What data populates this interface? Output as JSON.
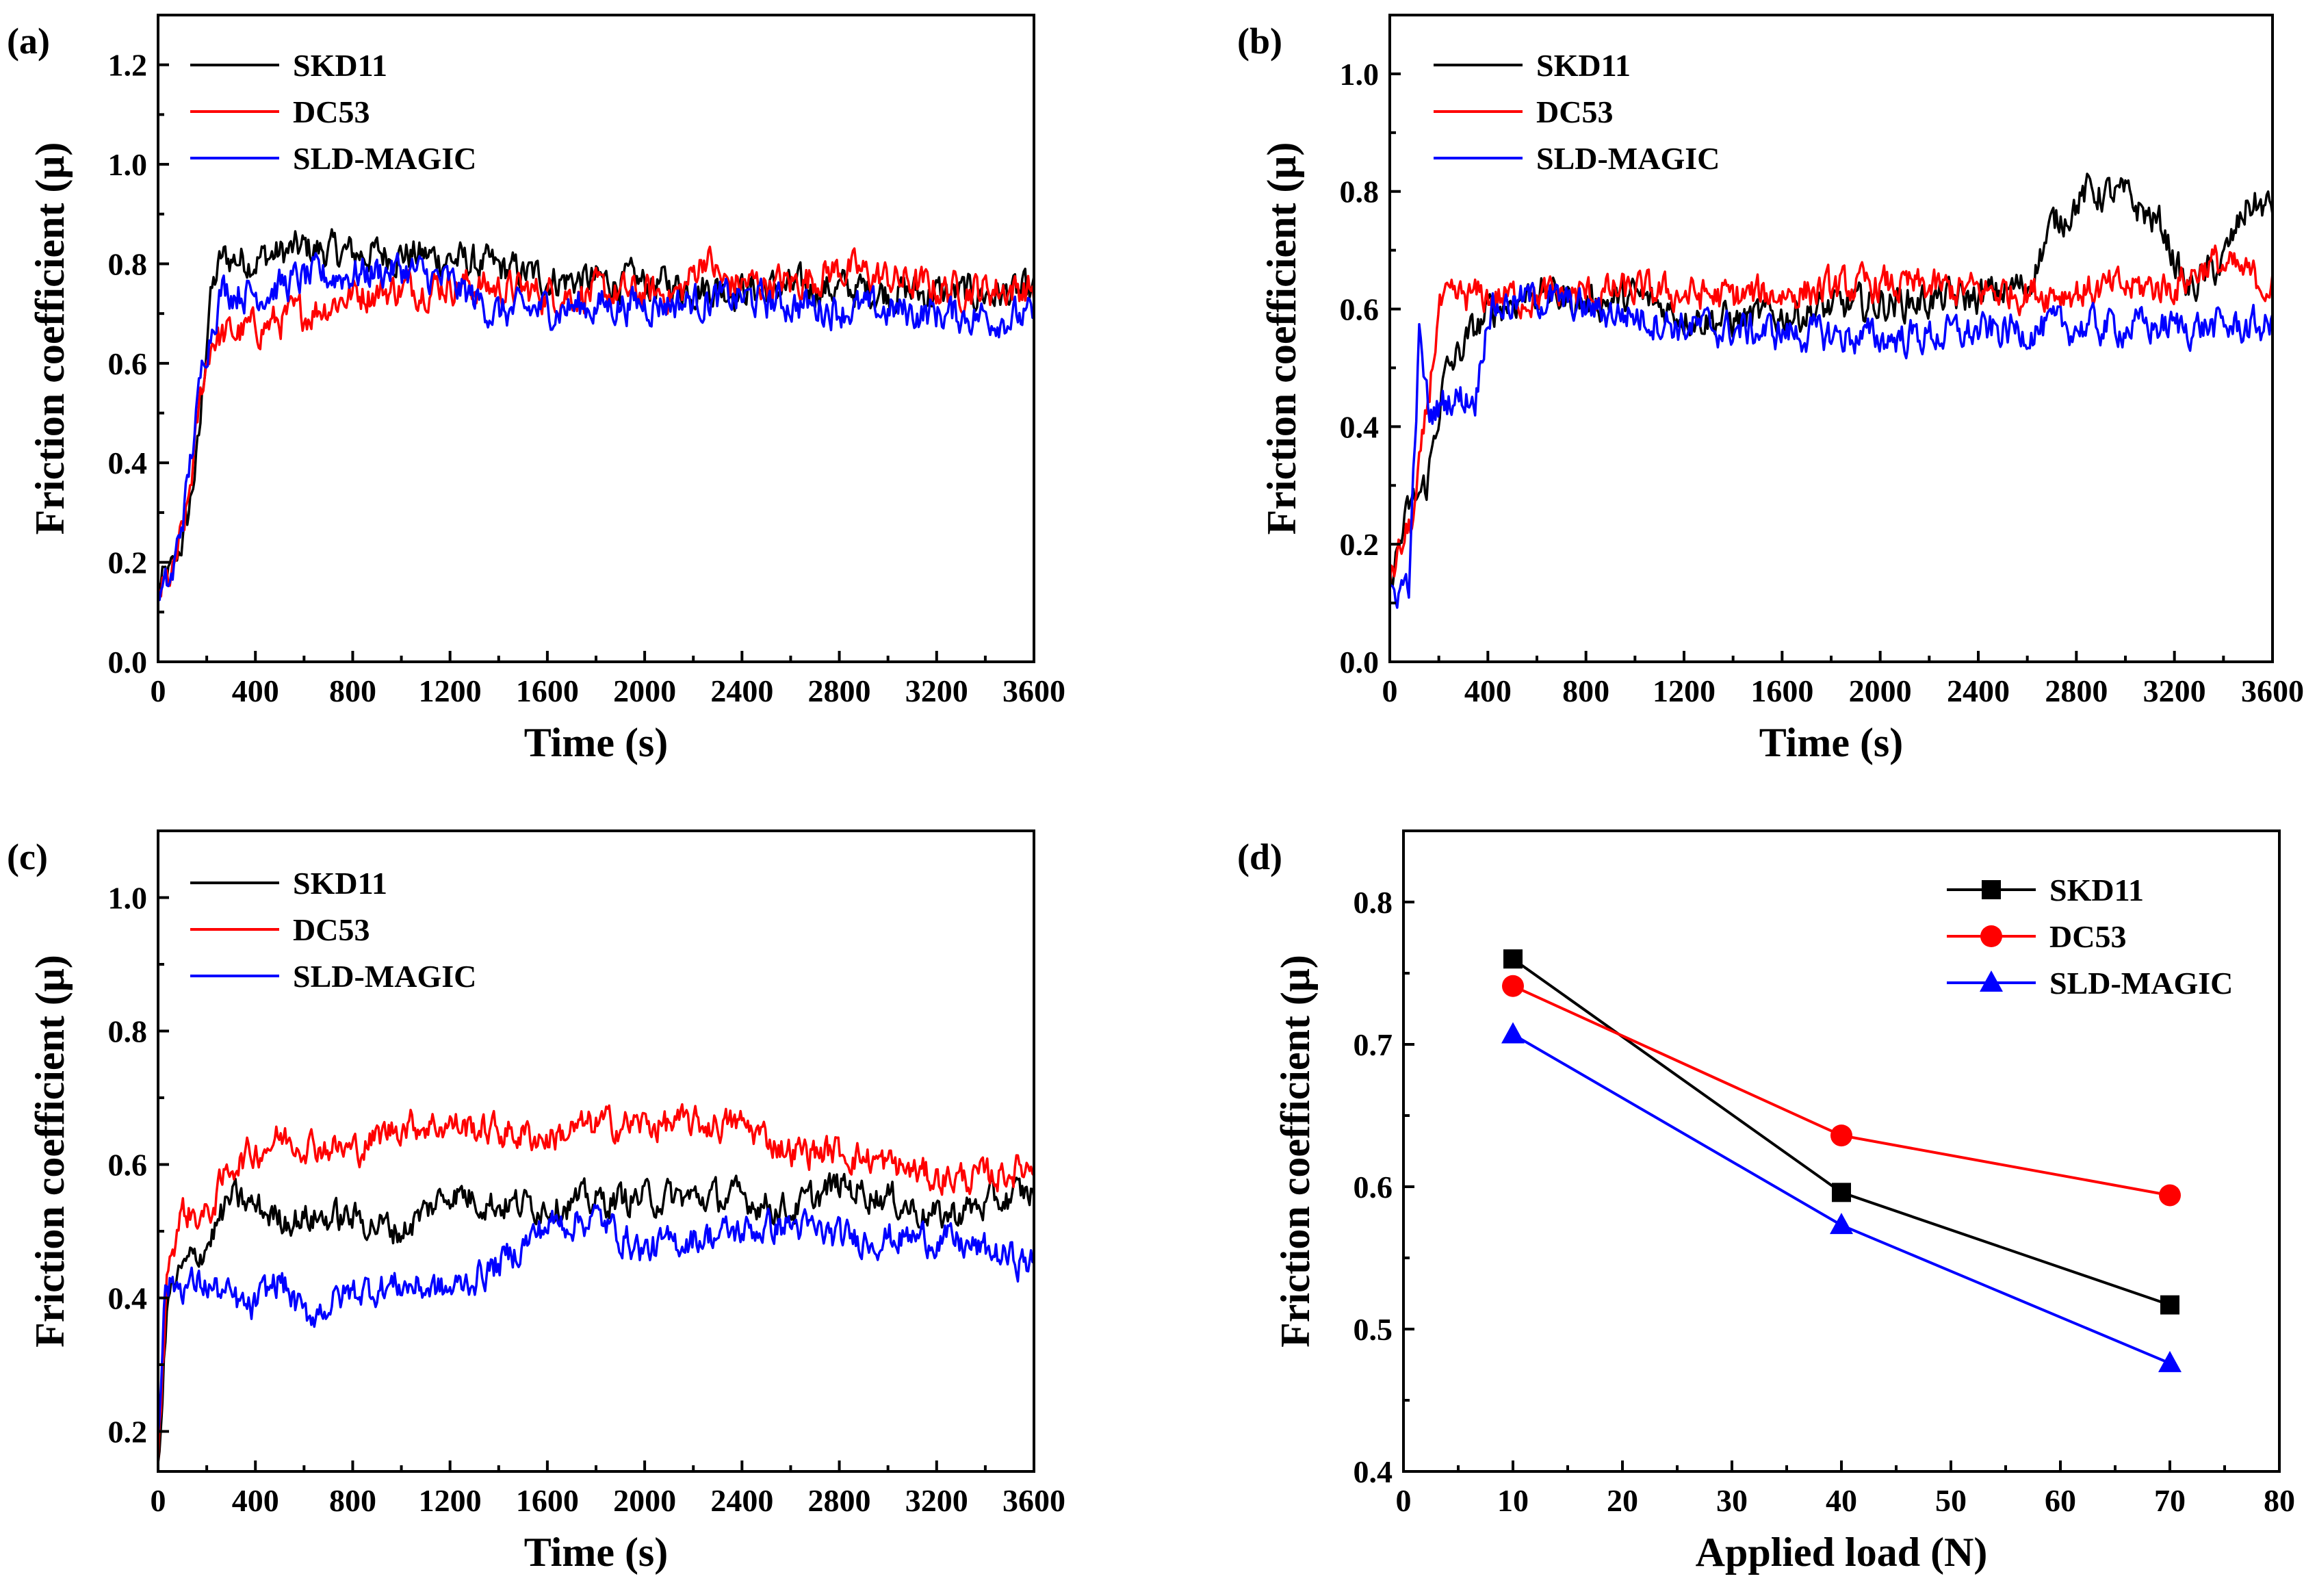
{
  "colors": {
    "SKD11": "#000000",
    "DC53": "#ff0000",
    "SLD-MAGIC": "#0000ff"
  },
  "chart_data": [
    {
      "panel": "(a)",
      "type": "line",
      "xlabel": "Time (s)",
      "ylabel": "Friction coefficient (μ)",
      "xlim": [
        0,
        3600
      ],
      "ylim": [
        0,
        1.3
      ],
      "xticks": [
        0,
        400,
        800,
        1200,
        1600,
        2000,
        2400,
        2800,
        3200,
        3600
      ],
      "yticks": [
        0.0,
        0.2,
        0.4,
        0.6,
        0.8,
        1.0,
        1.2
      ],
      "ytick_labels": [
        "0.0",
        "0.2",
        "0.4",
        "0.6",
        "0.8",
        "1.0",
        "1.2"
      ],
      "legend_position": "top-left",
      "noise": 0.03,
      "series": [
        {
          "name": "SKD11",
          "points": [
            [
              0,
              0.15
            ],
            [
              60,
              0.18
            ],
            [
              120,
              0.28
            ],
            [
              170,
              0.45
            ],
            [
              210,
              0.72
            ],
            [
              260,
              0.81
            ],
            [
              400,
              0.81
            ],
            [
              600,
              0.83
            ],
            [
              800,
              0.82
            ],
            [
              1000,
              0.82
            ],
            [
              1200,
              0.81
            ],
            [
              1600,
              0.77
            ],
            [
              2000,
              0.76
            ],
            [
              2400,
              0.75
            ],
            [
              2800,
              0.75
            ],
            [
              3200,
              0.74
            ],
            [
              3600,
              0.74
            ]
          ]
        },
        {
          "name": "DC53",
          "points": [
            [
              0,
              0.14
            ],
            [
              60,
              0.17
            ],
            [
              120,
              0.3
            ],
            [
              180,
              0.55
            ],
            [
              220,
              0.65
            ],
            [
              400,
              0.67
            ],
            [
              600,
              0.7
            ],
            [
              800,
              0.74
            ],
            [
              1200,
              0.76
            ],
            [
              1600,
              0.74
            ],
            [
              2000,
              0.74
            ],
            [
              2150,
              0.74
            ],
            [
              2250,
              0.82
            ],
            [
              2320,
              0.76
            ],
            [
              2600,
              0.76
            ],
            [
              2800,
              0.79
            ],
            [
              3200,
              0.75
            ],
            [
              3600,
              0.75
            ]
          ]
        },
        {
          "name": "SLD-MAGIC",
          "points": [
            [
              0,
              0.12
            ],
            [
              60,
              0.17
            ],
            [
              120,
              0.35
            ],
            [
              190,
              0.62
            ],
            [
              260,
              0.75
            ],
            [
              400,
              0.74
            ],
            [
              600,
              0.77
            ],
            [
              800,
              0.78
            ],
            [
              1000,
              0.79
            ],
            [
              1200,
              0.76
            ],
            [
              1400,
              0.7
            ],
            [
              1600,
              0.71
            ],
            [
              2000,
              0.72
            ],
            [
              2400,
              0.73
            ],
            [
              2800,
              0.71
            ],
            [
              3200,
              0.7
            ],
            [
              3600,
              0.69
            ]
          ]
        }
      ]
    },
    {
      "panel": "(b)",
      "type": "line",
      "xlabel": "Time (s)",
      "ylabel": "Friction coefficient (μ)",
      "xlim": [
        0,
        3600
      ],
      "ylim": [
        0,
        1.1
      ],
      "xticks": [
        0,
        400,
        800,
        1200,
        1600,
        2000,
        2400,
        2800,
        3200,
        3600
      ],
      "yticks": [
        0.0,
        0.2,
        0.4,
        0.6,
        0.8,
        1.0
      ],
      "ytick_labels": [
        "0.0",
        "0.2",
        "0.4",
        "0.6",
        "0.8",
        "1.0"
      ],
      "legend_position": "top-left",
      "noise": 0.025,
      "series": [
        {
          "name": "SKD11",
          "points": [
            [
              0,
              0.14
            ],
            [
              80,
              0.26
            ],
            [
              150,
              0.3
            ],
            [
              220,
              0.48
            ],
            [
              320,
              0.55
            ],
            [
              420,
              0.6
            ],
            [
              600,
              0.63
            ],
            [
              800,
              0.61
            ],
            [
              1000,
              0.62
            ],
            [
              1200,
              0.59
            ],
            [
              1400,
              0.58
            ],
            [
              1600,
              0.59
            ],
            [
              2000,
              0.61
            ],
            [
              2400,
              0.62
            ],
            [
              2600,
              0.64
            ],
            [
              2700,
              0.74
            ],
            [
              2850,
              0.8
            ],
            [
              3000,
              0.79
            ],
            [
              3150,
              0.74
            ],
            [
              3250,
              0.63
            ],
            [
              3400,
              0.68
            ],
            [
              3500,
              0.78
            ],
            [
              3600,
              0.77
            ]
          ]
        },
        {
          "name": "DC53",
          "points": [
            [
              0,
              0.14
            ],
            [
              100,
              0.25
            ],
            [
              150,
              0.42
            ],
            [
              200,
              0.6
            ],
            [
              300,
              0.62
            ],
            [
              600,
              0.62
            ],
            [
              1000,
              0.63
            ],
            [
              1400,
              0.62
            ],
            [
              2000,
              0.64
            ],
            [
              2400,
              0.63
            ],
            [
              2800,
              0.63
            ],
            [
              3200,
              0.64
            ],
            [
              3350,
              0.68
            ],
            [
              3600,
              0.64
            ]
          ]
        },
        {
          "name": "SLD-MAGIC",
          "points": [
            [
              0,
              0.11
            ],
            [
              80,
              0.14
            ],
            [
              120,
              0.55
            ],
            [
              160,
              0.42
            ],
            [
              250,
              0.45
            ],
            [
              350,
              0.45
            ],
            [
              400,
              0.6
            ],
            [
              600,
              0.62
            ],
            [
              800,
              0.6
            ],
            [
              1000,
              0.59
            ],
            [
              1200,
              0.57
            ],
            [
              1600,
              0.56
            ],
            [
              2000,
              0.55
            ],
            [
              2400,
              0.56
            ],
            [
              2800,
              0.57
            ],
            [
              3200,
              0.57
            ],
            [
              3600,
              0.57
            ]
          ]
        }
      ]
    },
    {
      "panel": "(c)",
      "type": "line",
      "xlabel": "Time (s)",
      "ylabel": "Friction coefficient (μ)",
      "xlim": [
        0,
        3600
      ],
      "ylim": [
        0.14,
        1.1
      ],
      "xticks": [
        0,
        400,
        800,
        1200,
        1600,
        2000,
        2400,
        2800,
        3200,
        3600
      ],
      "yticks": [
        0.2,
        0.4,
        0.6,
        0.8,
        1.0
      ],
      "ytick_labels": [
        "0.2",
        "0.4",
        "0.6",
        "0.8",
        "1.0"
      ],
      "legend_position": "top-left",
      "noise": 0.02,
      "series": [
        {
          "name": "SKD11",
          "points": [
            [
              0,
              0.15
            ],
            [
              40,
              0.4
            ],
            [
              100,
              0.44
            ],
            [
              200,
              0.48
            ],
            [
              300,
              0.55
            ],
            [
              500,
              0.52
            ],
            [
              800,
              0.52
            ],
            [
              1000,
              0.5
            ],
            [
              1200,
              0.56
            ],
            [
              1400,
              0.54
            ],
            [
              1600,
              0.54
            ],
            [
              2000,
              0.55
            ],
            [
              2400,
              0.55
            ],
            [
              2600,
              0.53
            ],
            [
              2800,
              0.57
            ],
            [
              3000,
              0.55
            ],
            [
              3200,
              0.52
            ],
            [
              3400,
              0.54
            ],
            [
              3600,
              0.56
            ]
          ]
        },
        {
          "name": "DC53",
          "points": [
            [
              0,
              0.15
            ],
            [
              40,
              0.45
            ],
            [
              100,
              0.53
            ],
            [
              200,
              0.52
            ],
            [
              300,
              0.6
            ],
            [
              500,
              0.64
            ],
            [
              800,
              0.62
            ],
            [
              1000,
              0.66
            ],
            [
              1200,
              0.66
            ],
            [
              1400,
              0.65
            ],
            [
              1600,
              0.64
            ],
            [
              1800,
              0.66
            ],
            [
              2000,
              0.66
            ],
            [
              2400,
              0.66
            ],
            [
              2600,
              0.62
            ],
            [
              2800,
              0.62
            ],
            [
              3000,
              0.6
            ],
            [
              3200,
              0.58
            ],
            [
              3400,
              0.58
            ],
            [
              3600,
              0.6
            ]
          ]
        },
        {
          "name": "SLD-MAGIC",
          "points": [
            [
              0,
              0.2
            ],
            [
              30,
              0.42
            ],
            [
              200,
              0.42
            ],
            [
              380,
              0.38
            ],
            [
              500,
              0.43
            ],
            [
              600,
              0.37
            ],
            [
              800,
              0.41
            ],
            [
              1000,
              0.42
            ],
            [
              1200,
              0.41
            ],
            [
              1400,
              0.45
            ],
            [
              1600,
              0.51
            ],
            [
              1800,
              0.52
            ],
            [
              2000,
              0.47
            ],
            [
              2200,
              0.49
            ],
            [
              2400,
              0.5
            ],
            [
              2600,
              0.51
            ],
            [
              2800,
              0.49
            ],
            [
              3200,
              0.49
            ],
            [
              3600,
              0.45
            ]
          ]
        }
      ]
    },
    {
      "panel": "(d)",
      "type": "line",
      "markers": true,
      "xlabel": "Applied load (N)",
      "ylabel": "Friction coefficient (μ)",
      "xlim": [
        0,
        80
      ],
      "ylim": [
        0.4,
        0.85
      ],
      "xticks": [
        0,
        10,
        20,
        30,
        40,
        50,
        60,
        70,
        80
      ],
      "yticks": [
        0.4,
        0.5,
        0.6,
        0.7,
        0.8
      ],
      "ytick_labels": [
        "0.4",
        "0.5",
        "0.6",
        "0.7",
        "0.8"
      ],
      "legend_position": "top-right",
      "series": [
        {
          "name": "SKD11",
          "marker": "square",
          "x": [
            10,
            40,
            70
          ],
          "y": [
            0.76,
            0.596,
            0.517
          ]
        },
        {
          "name": "DC53",
          "marker": "circle",
          "x": [
            10,
            40,
            70
          ],
          "y": [
            0.741,
            0.636,
            0.594
          ]
        },
        {
          "name": "SLD-MAGIC",
          "marker": "triangle",
          "x": [
            10,
            40,
            70
          ],
          "y": [
            0.707,
            0.573,
            0.476
          ]
        }
      ]
    }
  ]
}
